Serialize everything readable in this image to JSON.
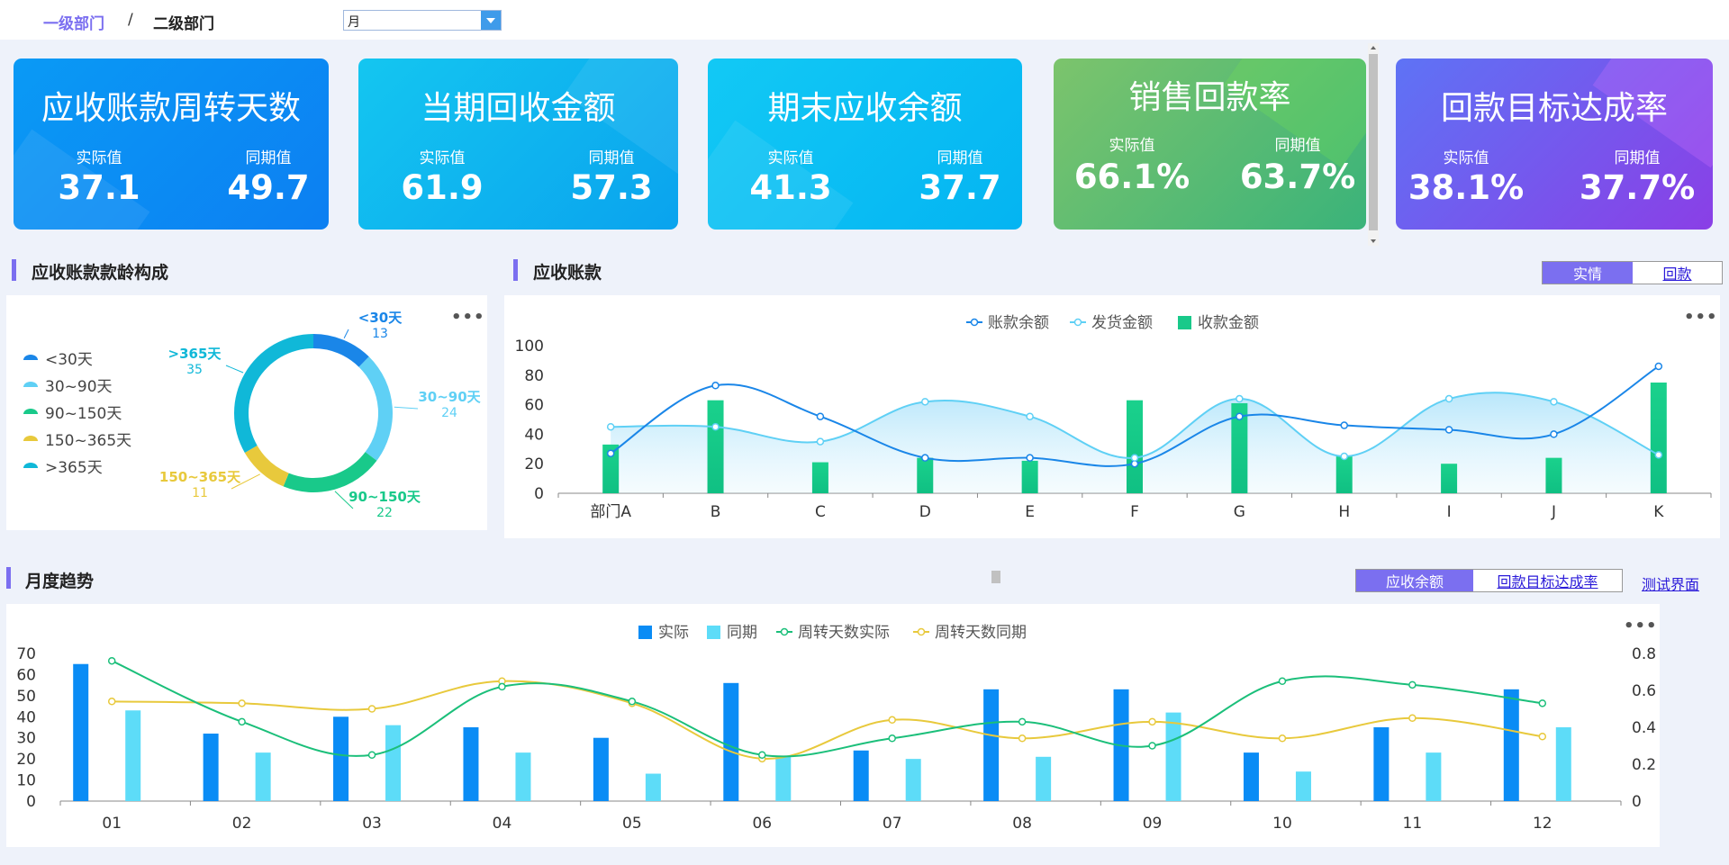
{
  "breadcrumb": {
    "level1": "一级部门",
    "separator": "/",
    "level2": "二级部门"
  },
  "period_select": {
    "value": "月"
  },
  "kpis": [
    {
      "title": "应收账款周转天数",
      "actual_label": "实际值",
      "actual": "37.1",
      "prior_label": "同期值",
      "prior": "49.7"
    },
    {
      "title": "当期回收金额",
      "actual_label": "实际值",
      "actual": "61.9",
      "prior_label": "同期值",
      "prior": "57.3"
    },
    {
      "title": "期末应收余额",
      "actual_label": "实际值",
      "actual": "41.3",
      "prior_label": "同期值",
      "prior": "37.7"
    },
    {
      "title": "销售回款率",
      "actual_label": "实际值",
      "actual": "66.1%",
      "prior_label": "同期值",
      "prior": "63.7%"
    },
    {
      "title": "回款目标达成率",
      "actual_label": "实际值",
      "actual": "38.1%",
      "prior_label": "同期值",
      "prior": "37.7%"
    }
  ],
  "colors": {
    "accent": "#7b6ff0",
    "line_dark": "#1a86e8",
    "line_light": "#5fd0f5",
    "bar_green": "#19c98a",
    "bar_blue": "#0a8cf5",
    "bar_cyan": "#5ddcf8",
    "green_line": "#1bbf7a",
    "yellow_line": "#e8c93c"
  },
  "sections": {
    "aging": {
      "title": "应收账款款龄构成"
    },
    "receivables": {
      "title": "应收账款",
      "toggle": [
        "实情",
        "回款"
      ]
    },
    "trend": {
      "title": "月度趋势",
      "toggle": [
        "应收余额",
        "回款目标达成率"
      ],
      "link": "测试界面"
    }
  },
  "more_icon": "•••",
  "chart_data": [
    {
      "type": "pie",
      "variant": "donut",
      "legend_position": "left",
      "categories": [
        "<30天",
        "30~90天",
        "90~150天",
        "150~365天",
        ">365天"
      ],
      "values": [
        13,
        24,
        22,
        11,
        35
      ],
      "colors": [
        "#1a86e8",
        "#5fd0f5",
        "#19c98a",
        "#e8c93c",
        "#10b8d8"
      ]
    },
    {
      "type": "line",
      "categories": [
        "部门A",
        "B",
        "C",
        "D",
        "E",
        "F",
        "G",
        "H",
        "I",
        "J",
        "K"
      ],
      "series": [
        {
          "name": "账款余额",
          "type": "line",
          "values": [
            27,
            73,
            52,
            24,
            24,
            20,
            52,
            46,
            43,
            40,
            86
          ]
        },
        {
          "name": "发货金额",
          "type": "area",
          "values": [
            45,
            45,
            35,
            62,
            52,
            24,
            64,
            25,
            64,
            62,
            26
          ]
        },
        {
          "name": "收款金额",
          "type": "bar",
          "values": [
            33,
            63,
            21,
            24,
            22,
            63,
            61,
            25,
            20,
            24,
            75
          ]
        }
      ],
      "ylim": [
        0,
        100
      ],
      "yticks": [
        0,
        20,
        40,
        60,
        80,
        100
      ],
      "legend_position": "top-center"
    },
    {
      "type": "bar",
      "categories": [
        "01",
        "02",
        "03",
        "04",
        "05",
        "06",
        "07",
        "08",
        "09",
        "10",
        "11",
        "12"
      ],
      "series": [
        {
          "name": "实际",
          "type": "bar",
          "axis": "left",
          "values": [
            65,
            32,
            40,
            35,
            30,
            56,
            24,
            53,
            53,
            23,
            35,
            53
          ]
        },
        {
          "name": "同期",
          "type": "bar",
          "axis": "left",
          "values": [
            43,
            23,
            36,
            23,
            13,
            21,
            20,
            21,
            42,
            14,
            23,
            35
          ]
        },
        {
          "name": "周转天数实际",
          "type": "line",
          "axis": "right",
          "values": [
            0.76,
            0.43,
            0.25,
            0.62,
            0.54,
            0.25,
            0.34,
            0.43,
            0.3,
            0.65,
            0.63,
            0.53
          ]
        },
        {
          "name": "周转天数同期",
          "type": "line",
          "axis": "right",
          "values": [
            0.54,
            0.53,
            0.5,
            0.65,
            0.53,
            0.23,
            0.44,
            0.34,
            0.43,
            0.34,
            0.45,
            0.35
          ]
        }
      ],
      "ylim_left": [
        0,
        70
      ],
      "yticks_left": [
        0,
        10,
        20,
        30,
        40,
        50,
        60,
        70
      ],
      "ylim_right": [
        0,
        0.8
      ],
      "yticks_right": [
        0,
        0.2,
        0.4,
        0.6,
        0.8
      ],
      "legend_position": "top-center"
    }
  ]
}
